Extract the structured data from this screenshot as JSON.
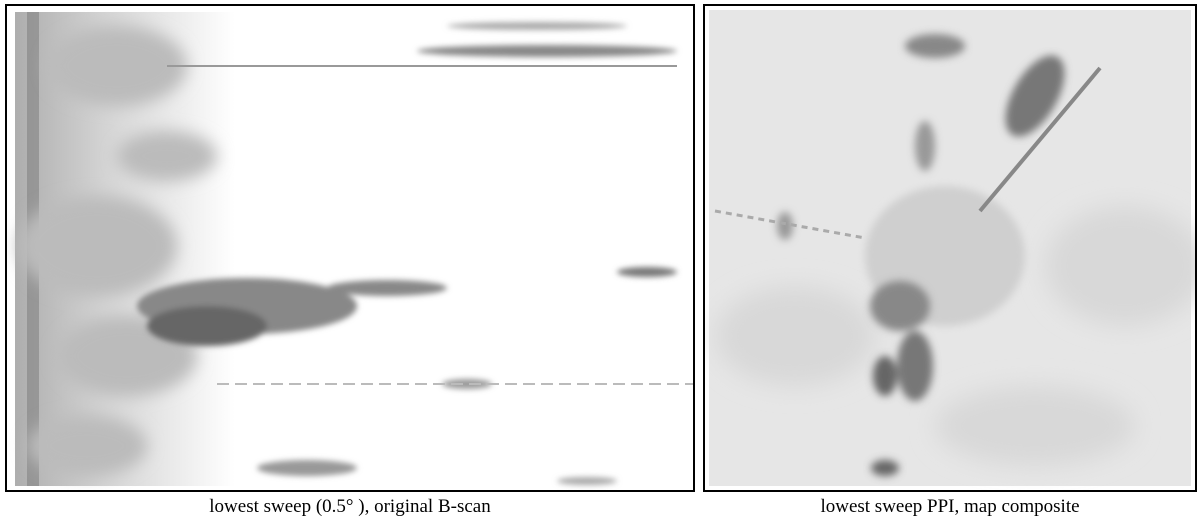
{
  "panels": [
    {
      "caption": "lowest sweep (0.5° ), original B-scan"
    },
    {
      "caption": "lowest sweep PPI, map composite"
    }
  ]
}
